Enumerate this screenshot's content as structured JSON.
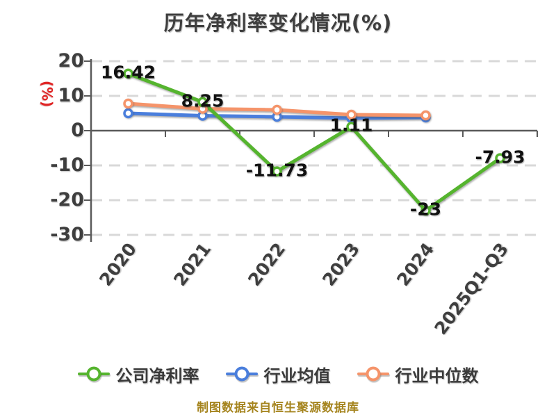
{
  "title": "历年净利率变化情况(%)",
  "y_axis_unit": "(%)",
  "footer_note": "制图数据来自恒生聚源数据库",
  "colors": {
    "title_text": "#3e3e3e",
    "axis": "#5a5a5a",
    "grid": "#d8d8d8",
    "tick_label": "#3e3e3e",
    "data_label": "#111111",
    "y_axis_unit": "#e02424",
    "footer": "#a5841e",
    "background": "#ffffff"
  },
  "chart_data": {
    "type": "line",
    "title": "历年净利率变化情况(%)",
    "categories": [
      "2020",
      "2021",
      "2022",
      "2023",
      "2024",
      "2025Q1-Q3"
    ],
    "series": [
      {
        "name": "公司净利率",
        "color": "#55b42e",
        "values": [
          16.42,
          8.25,
          -11.73,
          1.11,
          -23,
          -7.93
        ],
        "labels": [
          "16.42",
          "8.25",
          "-11.73",
          "1.11",
          "-23",
          "-7.93"
        ]
      },
      {
        "name": "行业均值",
        "color": "#4a7edc",
        "values": [
          5.0,
          4.3,
          4.0,
          3.6,
          3.8,
          null
        ]
      },
      {
        "name": "行业中位数",
        "color": "#f5946a",
        "values": [
          7.8,
          6.3,
          6.0,
          4.6,
          4.4,
          null
        ]
      }
    ],
    "ylim": [
      -30,
      20
    ],
    "y_ticks": [
      20,
      10,
      0,
      -10,
      -20,
      -30
    ],
    "y_tick_labels": [
      "20",
      "10",
      "0",
      "-10",
      "-20",
      "-30"
    ],
    "xlabel": "",
    "ylabel": "(%)",
    "grid": "horizontal-dashed",
    "zero_axis": "solid",
    "legend_position": "bottom",
    "data_labels_series": "公司净利率"
  }
}
